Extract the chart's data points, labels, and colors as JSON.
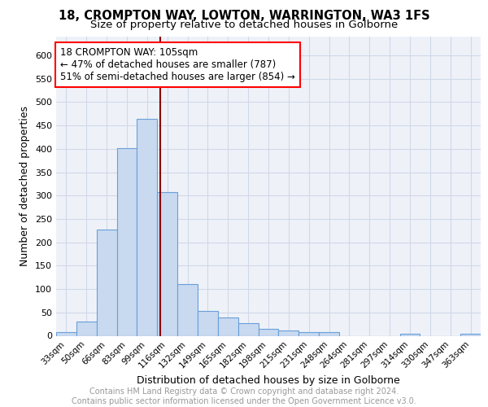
{
  "title1": "18, CROMPTON WAY, LOWTON, WARRINGTON, WA3 1FS",
  "title2": "Size of property relative to detached houses in Golborne",
  "xlabel": "Distribution of detached houses by size in Golborne",
  "ylabel": "Number of detached properties",
  "categories": [
    "33sqm",
    "50sqm",
    "66sqm",
    "83sqm",
    "99sqm",
    "116sqm",
    "132sqm",
    "149sqm",
    "165sqm",
    "182sqm",
    "198sqm",
    "215sqm",
    "231sqm",
    "248sqm",
    "264sqm",
    "281sqm",
    "297sqm",
    "314sqm",
    "330sqm",
    "347sqm",
    "363sqm"
  ],
  "values": [
    7,
    30,
    228,
    401,
    464,
    308,
    111,
    53,
    39,
    27,
    14,
    12,
    8,
    7,
    0,
    0,
    0,
    5,
    0,
    0,
    5
  ],
  "bar_color": "#c8d9f0",
  "bar_edge_color": "#6a9fd8",
  "vline_x": 4.65,
  "vline_color": "#8b0000",
  "annotation_line1": "18 CROMPTON WAY: 105sqm",
  "annotation_line2": "← 47% of detached houses are smaller (787)",
  "annotation_line3": "51% of semi-detached houses are larger (854) →",
  "annotation_box_color": "white",
  "annotation_box_edge_color": "red",
  "annotation_fontsize": 8.5,
  "ylim": [
    0,
    640
  ],
  "yticks": [
    0,
    50,
    100,
    150,
    200,
    250,
    300,
    350,
    400,
    450,
    500,
    550,
    600
  ],
  "grid_color": "#d0d8e8",
  "background_color": "#eef2f8",
  "footer_text": "Contains HM Land Registry data © Crown copyright and database right 2024.\nContains public sector information licensed under the Open Government Licence v3.0.",
  "title1_fontsize": 10.5,
  "title2_fontsize": 9.5,
  "xlabel_fontsize": 9,
  "ylabel_fontsize": 9,
  "footer_fontsize": 7
}
